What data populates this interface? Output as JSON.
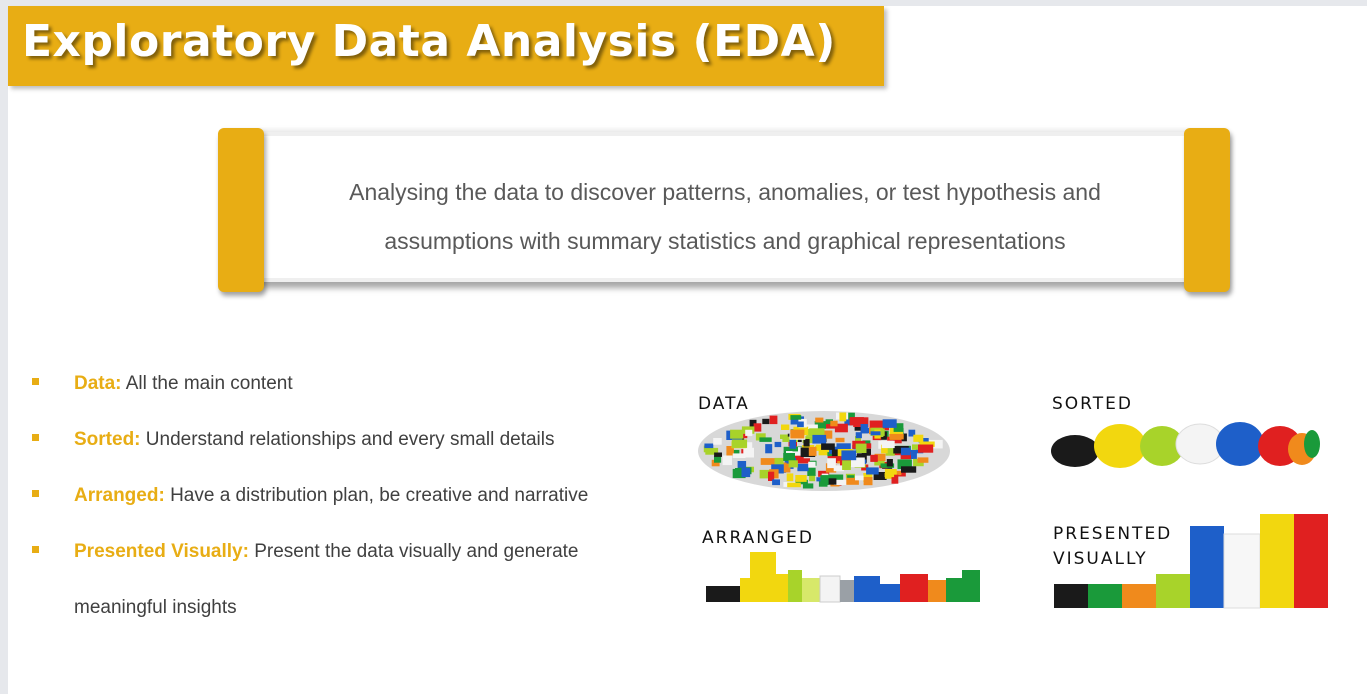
{
  "title": "Exploratory Data Analysis (EDA)",
  "callout": {
    "line1": "Analysing the data to discover patterns, anomalies, or test hypothesis and",
    "line2": "assumptions with summary statistics and graphical representations"
  },
  "bullets": [
    {
      "term": "Data:",
      "text": " All the main content"
    },
    {
      "term": "Sorted:",
      "text": "  Understand relationships and every small details"
    },
    {
      "term": "Arranged:",
      "text": " Have a distribution plan, be creative and narrative"
    },
    {
      "term": "Presented Visually:",
      "text": " Present the data visually and generate"
    },
    {
      "term": "",
      "text": "meaningful insights"
    }
  ],
  "images": {
    "data_label": "DATA",
    "sorted_label": "SORTED",
    "arranged_label": "ARRANGED",
    "presented_label": "PRESENTED\nVISUALLY"
  },
  "colors": {
    "accent": "#e8ad14",
    "body_text": "#404040",
    "callout_text": "#595959"
  }
}
